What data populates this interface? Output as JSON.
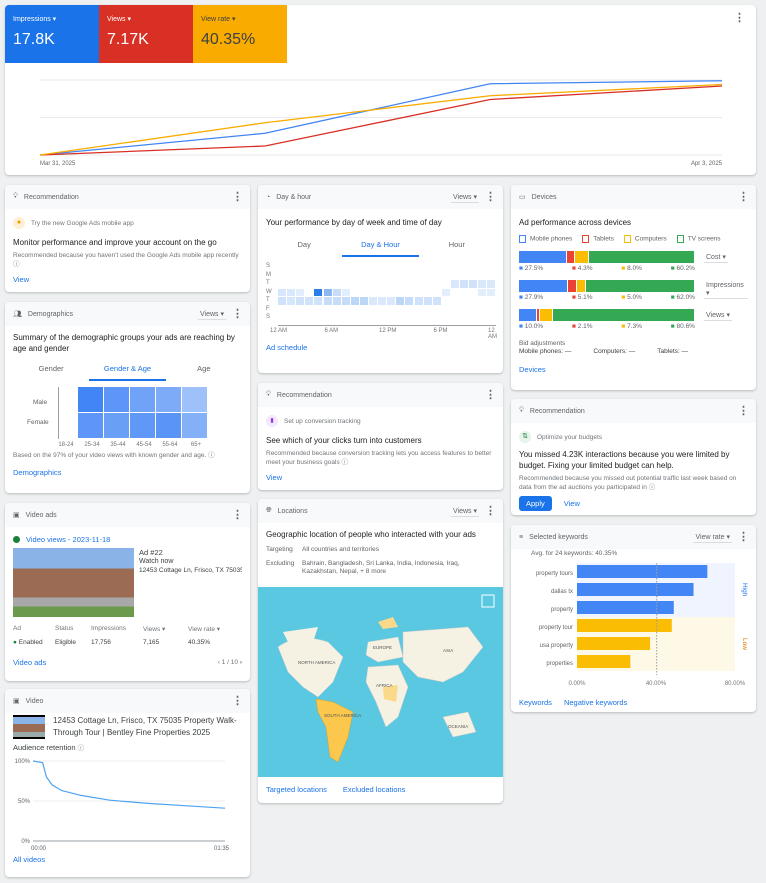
{
  "summary": {
    "metrics": [
      {
        "label": "Impressions",
        "value": "17.8K",
        "color": "#1a73e8"
      },
      {
        "label": "Views",
        "value": "7.17K",
        "color": "#d93025"
      },
      {
        "label": "View rate",
        "value": "40.35%",
        "color": "#f9ab00"
      }
    ],
    "chart_data": {
      "type": "line",
      "x": [
        "Mar 31, 2025",
        "Apr 1, 2025",
        "Apr 2, 2025",
        "Apr 3, 2025"
      ],
      "x_tick_labels": [
        "Mar 31, 2025",
        "Apr 3, 2025"
      ],
      "series": [
        {
          "metric": "Impressions",
          "color": "#4285f4",
          "values": [
            0,
            0.29,
            0.95,
            0.99
          ]
        },
        {
          "metric": "Views",
          "color": "#d93025",
          "values": [
            0,
            0.12,
            0.74,
            0.92
          ]
        },
        {
          "metric": "View rate",
          "color": "#f9ab00",
          "values": [
            0,
            0.43,
            0.79,
            0.94
          ]
        }
      ],
      "grid": true
    }
  },
  "rec1": {
    "header": "Recommendation",
    "icon": "lightbulb-icon",
    "tag": "Try the new Google Ads mobile app",
    "title": "Monitor performance and improve your account on the go",
    "reason": "Recommended because you haven't used the Google Ads mobile app recently",
    "link": "View"
  },
  "demo": {
    "header": "Demographics",
    "metric": "Views",
    "title": "Summary of the demographic groups your ads are reaching by age and gender",
    "tabs": [
      "Gender",
      "Gender & Age",
      "Age"
    ],
    "active_tab": 1,
    "rows": [
      "Male",
      "Female"
    ],
    "cols": [
      "18-24",
      "25-34",
      "35-44",
      "45-54",
      "55-64",
      "65+"
    ],
    "chart_data": {
      "type": "heatmap",
      "rows": [
        "Male",
        "Female"
      ],
      "cols": [
        "18-24",
        "25-34",
        "35-44",
        "45-54",
        "55-64",
        "65+"
      ],
      "intensity": [
        [
          0,
          1.0,
          0.8,
          0.65,
          0.55,
          0.3
        ],
        [
          0,
          0.8,
          0.7,
          0.78,
          0.82,
          0.5
        ]
      ]
    },
    "note": "Based on the 97% of your video views with known gender and age.",
    "link": "Demographics"
  },
  "videoads": {
    "header": "Video ads",
    "campaign": "Video views - 2023-11-18",
    "ad_name": "Ad #22",
    "cta": "Watch now",
    "address": "12453 Cottage Ln, Frisco, TX 75035",
    "cols": [
      "Ad",
      "Status",
      "Impressions",
      "Views",
      "View rate"
    ],
    "row": [
      "Enabled",
      "Eligible",
      "17,756",
      "7,165",
      "40.35%"
    ],
    "link": "Video ads",
    "pager": "1 / 10"
  },
  "video": {
    "header": "Video",
    "title": "12453 Cottage Ln, Frisco, TX 75035 Property Walk-Through Tour | Bentley Fine Properties 2025",
    "retention_label": "Audience retention",
    "chart_data": {
      "type": "line",
      "y_ticks": [
        "100%",
        "50%",
        "0%"
      ],
      "x_ticks": [
        "00:00",
        "01:35"
      ],
      "x": [
        0,
        0.05,
        0.07,
        0.1,
        0.15,
        0.25,
        0.4,
        0.6,
        0.8,
        1
      ],
      "values": [
        100,
        98,
        80,
        70,
        63,
        57,
        51,
        47,
        44,
        41
      ]
    },
    "link": "All videos"
  },
  "dayhour": {
    "header": "Day & hour",
    "metric": "Views",
    "title": "Your performance by day of week and time of day",
    "tabs": [
      "Day",
      "Day & Hour",
      "Hour"
    ],
    "active_tab": 1,
    "days": [
      "S",
      "M",
      "T",
      "W",
      "T",
      "F",
      "S"
    ],
    "hours": [
      "12 AM",
      "6 AM",
      "12 PM",
      "6 PM",
      "12 AM"
    ],
    "chart_data": {
      "type": "heatmap",
      "rows": [
        "S",
        "M",
        "T",
        "W",
        "T",
        "F",
        "S"
      ],
      "intensity": [
        [
          0,
          0,
          0,
          0,
          0,
          0,
          0,
          0,
          0,
          0,
          0,
          0,
          0,
          0,
          0,
          0,
          0,
          0,
          0,
          0,
          0,
          0,
          0,
          0
        ],
        [
          0,
          0,
          0,
          0,
          0,
          0,
          0,
          0,
          0,
          0,
          0,
          0,
          0,
          0,
          0,
          0,
          0,
          0,
          0,
          0,
          0,
          0,
          0,
          0
        ],
        [
          0,
          0,
          0,
          0,
          0,
          0,
          0,
          0,
          0,
          0,
          0,
          0,
          0,
          0,
          0,
          0,
          0,
          0,
          0,
          0.1,
          0.15,
          0.15,
          0.1,
          0.1
        ],
        [
          0.12,
          0.1,
          0.05,
          0,
          1,
          0.5,
          0.2,
          0.05,
          0,
          0,
          0,
          0,
          0,
          0,
          0,
          0,
          0,
          0,
          0.05,
          0,
          0,
          0,
          0.05,
          0.05
        ],
        [
          0.15,
          0.12,
          0.15,
          0.15,
          0.15,
          0.2,
          0.2,
          0.2,
          0.25,
          0.25,
          0.1,
          0.1,
          0.1,
          0.25,
          0.2,
          0.15,
          0.15,
          0.15,
          0,
          0,
          0,
          0,
          0,
          0
        ],
        [
          0,
          0,
          0,
          0,
          0,
          0,
          0,
          0,
          0,
          0,
          0,
          0,
          0,
          0,
          0,
          0,
          0,
          0,
          0,
          0,
          0,
          0,
          0,
          0
        ],
        [
          0,
          0,
          0,
          0,
          0,
          0,
          0,
          0,
          0,
          0,
          0,
          0,
          0,
          0,
          0,
          0,
          0,
          0,
          0,
          0,
          0,
          0,
          0,
          0
        ]
      ]
    },
    "link": "Ad schedule"
  },
  "rec2": {
    "header": "Recommendation",
    "icon": "bar-chart-icon",
    "tag": "Set up conversion tracking",
    "title": "See which of your clicks turn into customers",
    "reason": "Recommended because conversion tracking lets you access features to better meet your business goals",
    "link": "View"
  },
  "locations": {
    "header": "Locations",
    "metric": "Views",
    "title": "Geographic location of people who interacted with your ads",
    "targeting_label": "Targeting",
    "targeting": "All countries and territories",
    "excluding_label": "Excluding",
    "excluding": "Bahrain, Bangladesh, Sri Lanka, India, Indonesia, Iraq, Kazakhstan, Nepal, + 8 more",
    "map_labels": [
      "NORTH AMERICA",
      "SOUTH AMERICA",
      "EUROPE",
      "AFRICA",
      "ASIA",
      "OCEANIA"
    ],
    "links": [
      "Targeted locations",
      "Excluded locations"
    ]
  },
  "devices": {
    "header": "Devices",
    "title": "Ad performance across devices",
    "legend": [
      {
        "label": "Mobile phones",
        "color": "#4285f4"
      },
      {
        "label": "Tablets",
        "color": "#ea4335"
      },
      {
        "label": "Computers",
        "color": "#fbbc04"
      },
      {
        "label": "TV screens",
        "color": "#34a853"
      }
    ],
    "chart_data": {
      "type": "bar",
      "stacked": true,
      "rows": [
        {
          "metric": "Cost",
          "values": [
            27.5,
            4.3,
            8.0,
            60.2
          ],
          "labels": [
            "27.5%",
            "4.3%",
            "8.0%",
            "60.2%"
          ]
        },
        {
          "metric": "Impressions",
          "values": [
            27.9,
            5.1,
            5.0,
            62.0
          ],
          "labels": [
            "27.9%",
            "5.1%",
            "5.0%",
            "62.0%"
          ]
        },
        {
          "metric": "Views",
          "values": [
            10.0,
            2.1,
            7.3,
            80.6
          ],
          "labels": [
            "10.0%",
            "2.1%",
            "7.3%",
            "80.6%"
          ]
        }
      ]
    },
    "bid_label": "Bid adjustments",
    "bids": [
      "Mobile phones: —",
      "Computers: —",
      "Tablets: —"
    ],
    "link": "Devices"
  },
  "rec3": {
    "header": "Recommendation",
    "icon": "arrows-icon",
    "tag": "Optimize your budgets",
    "title": "You missed 4.23K interactions because you were limited by budget. Fixing your limited budget can help.",
    "reason": "Recommended because you missed out potential traffic last week based on data from the ad auctions you participated in",
    "apply": "Apply",
    "link": "View"
  },
  "keywords": {
    "header": "Selected keywords",
    "metric": "View rate",
    "avg": "Avg. for 24 keywords: 40.35%",
    "bands": [
      "High",
      "Low"
    ],
    "chart_data": {
      "type": "bar",
      "orientation": "horizontal",
      "categories": [
        "property tours",
        "dallas tx",
        "property",
        "property tour",
        "usa property",
        "properties"
      ],
      "values": [
        66,
        59,
        49,
        48,
        37,
        27
      ],
      "groups": [
        "High",
        "High",
        "High",
        "Low",
        "Low",
        "Low"
      ],
      "average": 40.35,
      "x_ticks": [
        "0.00%",
        "40.00%",
        "80.00%"
      ],
      "xlim": [
        0,
        80
      ]
    },
    "links": [
      "Keywords",
      "Negative keywords"
    ]
  }
}
